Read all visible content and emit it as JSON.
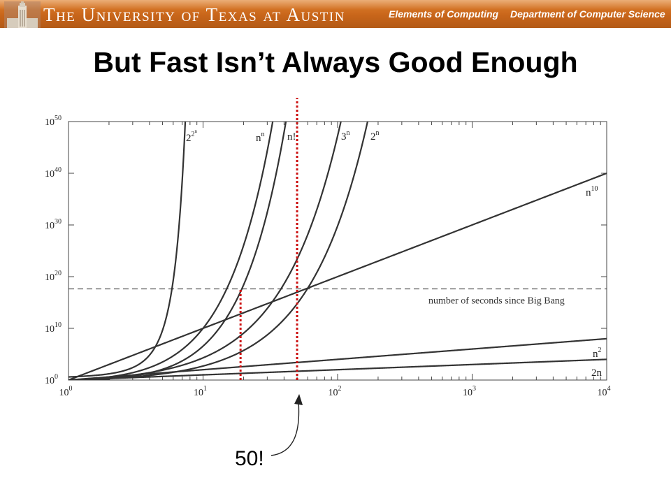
{
  "header": {
    "university": "The University of Texas at Austin",
    "course": "Elements of Computing",
    "department": "Department of Computer Science"
  },
  "slide": {
    "title": "But Fast Isn’t Always Good Enough",
    "callout": "50!"
  },
  "colors": {
    "banner": "#c8651a",
    "curve": "#333333",
    "marker": "#cc1111",
    "bigbang": "#555555"
  },
  "icons": {
    "logo": "ut-tower-logo-icon"
  },
  "chart_data": {
    "type": "line",
    "xscale": "log",
    "yscale": "log",
    "xlim": [
      1,
      10000
    ],
    "ylim": [
      1,
      1e+50
    ],
    "x_ticks": [
      {
        "value": 1,
        "base": "10",
        "exp": "0"
      },
      {
        "value": 10,
        "base": "10",
        "exp": "1"
      },
      {
        "value": 100,
        "base": "10",
        "exp": "2"
      },
      {
        "value": 1000,
        "base": "10",
        "exp": "3"
      },
      {
        "value": 10000,
        "base": "10",
        "exp": "4"
      }
    ],
    "y_ticks": [
      {
        "value": 1,
        "base": "10",
        "exp": "0"
      },
      {
        "value": 10000000000.0,
        "base": "10",
        "exp": "10"
      },
      {
        "value": 1e+20,
        "base": "10",
        "exp": "20"
      },
      {
        "value": 1e+30,
        "base": "10",
        "exp": "30"
      },
      {
        "value": 1e+40,
        "base": "10",
        "exp": "40"
      },
      {
        "value": 1e+50,
        "base": "10",
        "exp": "50"
      }
    ],
    "series": [
      {
        "id": "2^2^n",
        "label_base": "2",
        "label_exp": "2",
        "label_exp2": "n"
      },
      {
        "id": "n^n",
        "label_base": "n",
        "label_exp": "n"
      },
      {
        "id": "n!",
        "label_base": "n!",
        "label_exp": ""
      },
      {
        "id": "3^n",
        "label_base": "3",
        "label_exp": "n"
      },
      {
        "id": "2^n",
        "label_base": "2",
        "label_exp": "n"
      },
      {
        "id": "n^10",
        "label_base": "n",
        "label_exp": "10"
      },
      {
        "id": "n^2",
        "label_base": "n",
        "label_exp": "2"
      },
      {
        "id": "2n",
        "label_base": "2n",
        "label_exp": ""
      }
    ],
    "reference_line": {
      "y": 4.3e+17,
      "label": "number of seconds since Big Bang"
    },
    "markers": [
      19,
      50
    ]
  }
}
